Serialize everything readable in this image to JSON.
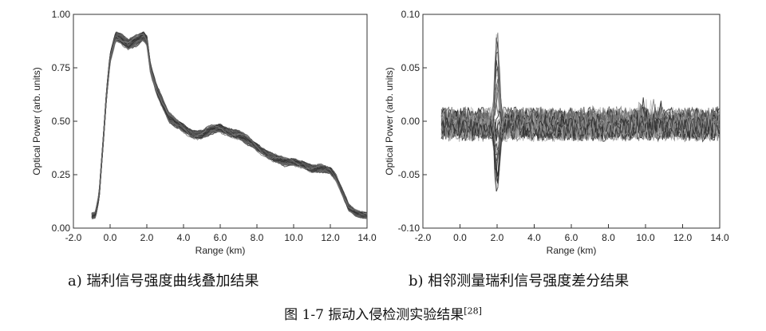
{
  "figure": {
    "caption_prefix": "图 1-7 振动入侵检测实验结果",
    "caption_ref": "[28]"
  },
  "chart_data": [
    {
      "type": "line",
      "panel_caption": "a) 瑞利信号强度曲线叠加结果",
      "xlabel": "Range (km)",
      "ylabel": "Optical Power (arb. units)",
      "xlim": [
        -2.0,
        14.0
      ],
      "ylim": [
        0.0,
        1.0
      ],
      "xticks": [
        "-2.0",
        "0.0",
        "2.0",
        "4.0",
        "6.0",
        "8.0",
        "10.0",
        "12.0",
        "14.0"
      ],
      "yticks": [
        "0.00",
        "0.25",
        "0.50",
        "0.75",
        "1.00"
      ],
      "grid": false,
      "series_count": 50,
      "envelope": {
        "x": [
          -1.0,
          -0.8,
          -0.6,
          -0.4,
          -0.2,
          0.0,
          0.3,
          0.6,
          1.0,
          1.2,
          1.5,
          1.8,
          2.0,
          2.2,
          2.5,
          2.8,
          3.2,
          3.6,
          4.0,
          4.5,
          5.0,
          5.5,
          6.0,
          6.5,
          7.0,
          7.5,
          8.0,
          8.5,
          9.0,
          9.5,
          10.0,
          10.5,
          11.0,
          11.5,
          12.0,
          12.3,
          12.6,
          13.0,
          13.4,
          13.8,
          14.0
        ],
        "y": [
          0.06,
          0.06,
          0.15,
          0.38,
          0.62,
          0.8,
          0.9,
          0.89,
          0.86,
          0.87,
          0.88,
          0.9,
          0.88,
          0.75,
          0.66,
          0.6,
          0.52,
          0.49,
          0.47,
          0.44,
          0.44,
          0.46,
          0.47,
          0.45,
          0.44,
          0.41,
          0.38,
          0.35,
          0.33,
          0.31,
          0.31,
          0.3,
          0.28,
          0.28,
          0.27,
          0.24,
          0.18,
          0.1,
          0.07,
          0.06,
          0.06
        ]
      }
    },
    {
      "type": "line",
      "panel_caption": "b) 相邻测量瑞利信号强度差分结果",
      "xlabel": "Range (km)",
      "ylabel": "Optical Power (arb. units)",
      "xlim": [
        -2.0,
        14.0
      ],
      "ylim": [
        -0.1,
        0.1
      ],
      "xticks": [
        "-2.0",
        "0.0",
        "2.0",
        "4.0",
        "6.0",
        "8.0",
        "10.0",
        "12.0",
        "14.0"
      ],
      "yticks": [
        "-0.10",
        "-0.05",
        "0.00",
        "0.05",
        "0.10"
      ],
      "grid": false,
      "series_count": 45,
      "noise_band": [
        -0.015,
        0.02
      ],
      "peak": {
        "x": 2.0,
        "max": 0.09,
        "min": -0.065
      }
    }
  ]
}
